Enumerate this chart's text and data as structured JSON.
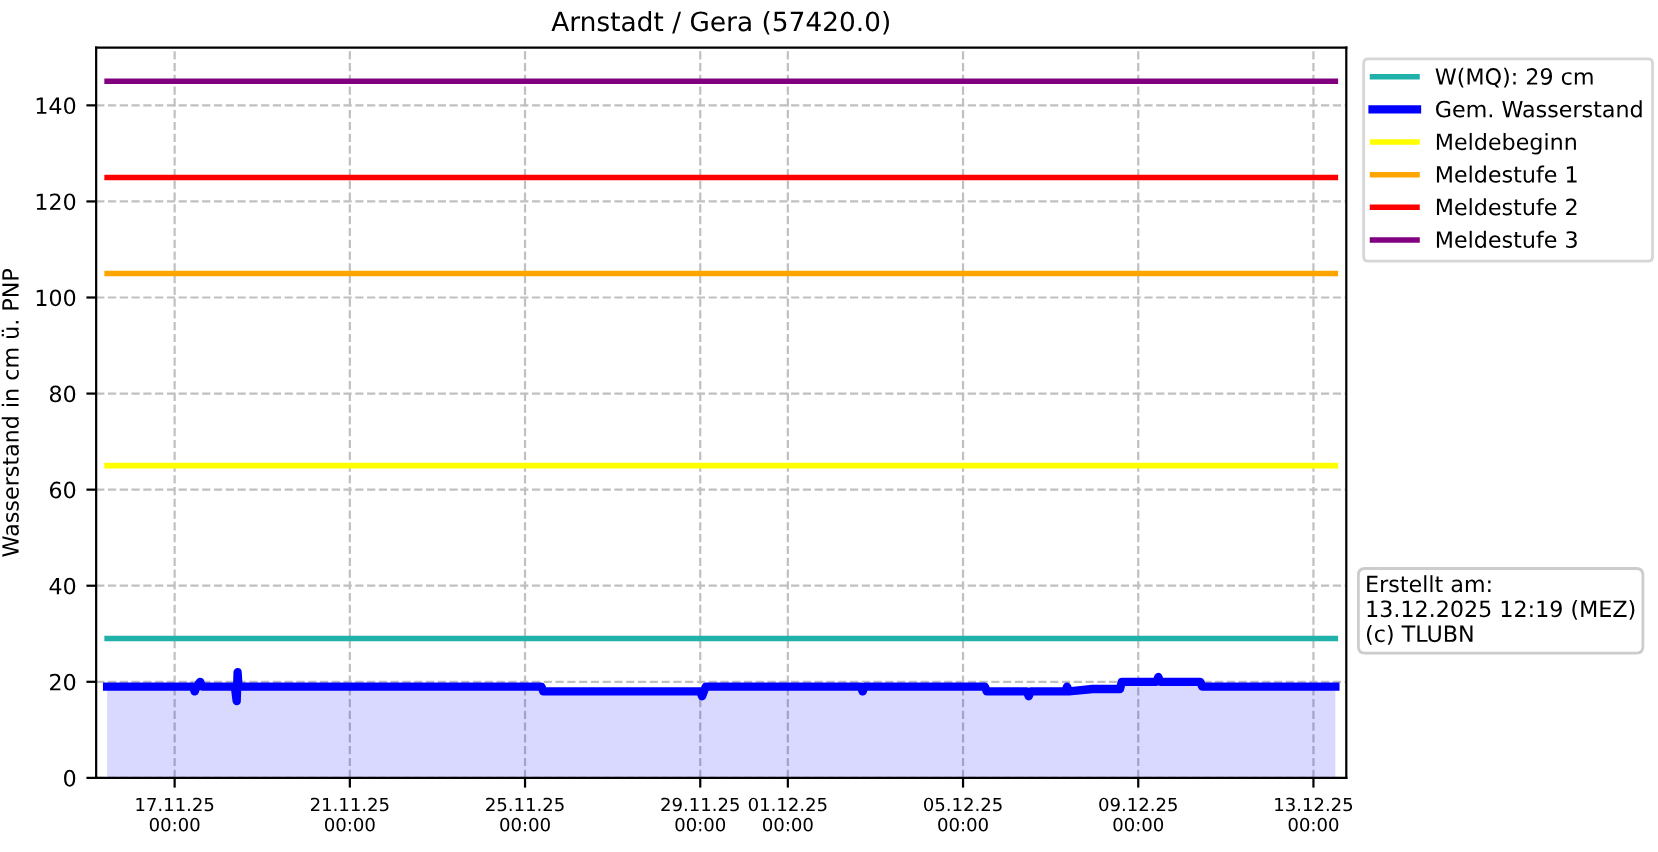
{
  "chart_data": {
    "type": "line",
    "title": "Arnstadt / Gera (57420.0)",
    "ylabel": "Wasserstand in cm ü. PNP",
    "xlim": [
      "2025-11-15T05:00",
      "2025-12-13T18:00"
    ],
    "ylim": [
      0,
      152
    ],
    "xticks": [
      {
        "value": "2025-11-17",
        "label": "17.11.25\n00:00"
      },
      {
        "value": "2025-11-21",
        "label": "21.11.25\n00:00"
      },
      {
        "value": "2025-11-25",
        "label": "25.11.25\n00:00"
      },
      {
        "value": "2025-11-29",
        "label": "29.11.25\n00:00"
      },
      {
        "value": "2025-12-01",
        "label": "01.12.25\n00:00"
      },
      {
        "value": "2025-12-05",
        "label": "05.12.25\n00:00"
      },
      {
        "value": "2025-12-09",
        "label": "09.12.25\n00:00"
      },
      {
        "value": "2025-12-13",
        "label": "13.12.25\n00:00"
      }
    ],
    "yticks": [
      0,
      20,
      40,
      60,
      80,
      100,
      120,
      140
    ],
    "grid": true,
    "legend": "right",
    "line_style": "solid",
    "series": [
      {
        "name": "W(MQ): 29 cm",
        "color": "#20b2aa",
        "x": [
          "2025-11-15T11:00",
          "2025-12-13T12:00"
        ],
        "values": [
          29,
          29
        ]
      },
      {
        "name": "Gem. Wasserstand",
        "color": "#0000ff",
        "type": "area",
        "x": [
          "2025-11-15T11:00",
          "2025-11-17T10:00",
          "2025-11-17T11:00",
          "2025-11-17T12:00",
          "2025-11-17T14:00",
          "2025-11-17T15:00",
          "2025-11-18T09:00",
          "2025-11-18T10:00",
          "2025-11-18T10:30",
          "2025-11-18T11:00",
          "2025-11-25T09:00",
          "2025-11-25T10:00",
          "2025-11-29T00:00",
          "2025-11-29T01:00",
          "2025-11-29T03:00",
          "2025-12-02T16:00",
          "2025-12-02T17:00",
          "2025-12-02T18:00",
          "2025-12-05T12:00",
          "2025-12-05T13:00",
          "2025-12-06T11:00",
          "2025-12-06T12:00",
          "2025-12-06T13:00",
          "2025-12-07T08:00",
          "2025-12-07T09:00",
          "2025-12-07T10:00",
          "2025-12-07T23:00",
          "2025-12-08T14:00",
          "2025-12-08T15:00",
          "2025-12-09T10:00",
          "2025-12-09T11:00",
          "2025-12-09T12:00",
          "2025-12-10T10:00",
          "2025-12-10T11:00",
          "2025-12-13T12:00"
        ],
        "values": [
          19,
          19,
          18,
          19,
          20,
          19,
          19,
          16,
          22,
          19,
          19,
          18,
          18,
          17,
          19,
          19,
          18,
          19,
          19,
          18,
          18,
          17,
          18,
          18,
          19,
          18,
          18.5,
          18.5,
          20,
          20,
          21,
          20,
          20,
          19,
          19
        ]
      },
      {
        "name": "Meldebeginn",
        "color": "#ffff00",
        "x": [
          "2025-11-15T11:00",
          "2025-12-13T12:00"
        ],
        "values": [
          65,
          65
        ]
      },
      {
        "name": "Meldestufe 1",
        "color": "#ffa500",
        "x": [
          "2025-11-15T11:00",
          "2025-12-13T12:00"
        ],
        "values": [
          105,
          105
        ]
      },
      {
        "name": "Meldestufe 2",
        "color": "#ff0000",
        "x": [
          "2025-11-15T11:00",
          "2025-12-13T12:00"
        ],
        "values": [
          125,
          125
        ]
      },
      {
        "name": "Meldestufe 3",
        "color": "#800080",
        "x": [
          "2025-11-15T11:00",
          "2025-12-13T12:00"
        ],
        "values": [
          145,
          145
        ]
      }
    ],
    "annotations": [
      "Erstellt am:\n13.12.2025 12:19 (MEZ)\n(c) TLUBN"
    ]
  }
}
